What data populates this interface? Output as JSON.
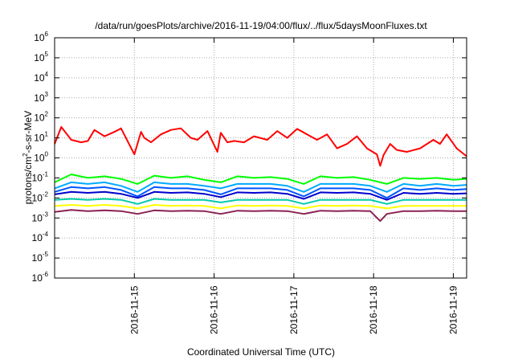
{
  "chart_data": {
    "type": "line",
    "title": "/data/run/goesPlots/archive/2016-11-19/04:00/flux/../flux/5daysMoonFluxes.txt",
    "xlabel": "Coordinated Universal Time (UTC)",
    "ylabel": {
      "base": "protons/cm",
      "exponent": "2",
      "rest": "-s-sr-MeV"
    },
    "y_scale": "log",
    "ylim": [
      1e-06,
      1000000.0
    ],
    "xlim": [
      "2016-11-14T00:00",
      "2016-11-19T04:00"
    ],
    "x_ticks": [
      "2016-11-15",
      "2016-11-16",
      "2016-11-17",
      "2016-11-18",
      "2016-11-19"
    ],
    "y_ticks": [
      {
        "base": "10",
        "exp": "-6"
      },
      {
        "base": "10",
        "exp": "-5"
      },
      {
        "base": "10",
        "exp": "-4"
      },
      {
        "base": "10",
        "exp": "-3"
      },
      {
        "base": "10",
        "exp": "-2"
      },
      {
        "base": "10",
        "exp": "-1"
      },
      {
        "base": "10",
        "exp": "0"
      },
      {
        "base": "10",
        "exp": "1"
      },
      {
        "base": "10",
        "exp": "2"
      },
      {
        "base": "10",
        "exp": "3"
      },
      {
        "base": "10",
        "exp": "4"
      },
      {
        "base": "10",
        "exp": "5"
      },
      {
        "base": "10",
        "exp": "6"
      }
    ],
    "grid": true,
    "legend": "none",
    "series": [
      {
        "color": "#ff0000",
        "x": [
          "2016-11-14T00:00",
          "2016-11-14T02:00",
          "2016-11-14T05:00",
          "2016-11-14T08:00",
          "2016-11-14T10:00",
          "2016-11-14T12:00",
          "2016-11-14T15:00",
          "2016-11-14T18:00",
          "2016-11-14T20:00",
          "2016-11-15T00:00",
          "2016-11-15T02:00",
          "2016-11-15T03:00",
          "2016-11-15T05:00",
          "2016-11-15T08:00",
          "2016-11-15T11:00",
          "2016-11-15T14:00",
          "2016-11-15T17:00",
          "2016-11-15T19:00",
          "2016-11-15T22:00",
          "2016-11-16T01:00",
          "2016-11-16T02:00",
          "2016-11-16T04:00",
          "2016-11-16T06:00",
          "2016-11-16T09:00",
          "2016-11-16T12:00",
          "2016-11-16T16:00",
          "2016-11-16T19:00",
          "2016-11-16T22:00",
          "2016-11-17T01:00",
          "2016-11-17T05:00",
          "2016-11-17T07:00",
          "2016-11-17T10:00",
          "2016-11-17T13:00",
          "2016-11-17T16:00",
          "2016-11-17T19:00",
          "2016-11-17T22:00",
          "2016-11-18T01:00",
          "2016-11-18T02:00",
          "2016-11-18T03:00",
          "2016-11-18T05:00",
          "2016-11-18T07:00",
          "2016-11-18T10:00",
          "2016-11-18T14:00",
          "2016-11-18T18:00",
          "2016-11-18T20:00",
          "2016-11-18T22:00",
          "2016-11-19T01:00",
          "2016-11-19T04:00"
        ],
        "values": [
          5,
          35,
          8,
          6,
          7,
          25,
          12,
          20,
          30,
          1.5,
          20,
          10,
          6,
          15,
          25,
          30,
          10,
          8,
          22,
          2,
          18,
          6,
          7,
          6,
          12,
          8,
          22,
          10,
          28,
          12,
          8,
          15,
          3,
          5,
          12,
          3,
          1.5,
          0.4,
          1.4,
          5,
          2.5,
          2,
          3,
          8,
          5,
          15,
          3,
          1.2
        ]
      },
      {
        "color": "#00ff00",
        "x": [
          "2016-11-14T00:00",
          "2016-11-14T05:00",
          "2016-11-14T10:00",
          "2016-11-14T15:00",
          "2016-11-14T20:00",
          "2016-11-15T01:00",
          "2016-11-15T06:00",
          "2016-11-15T11:00",
          "2016-11-15T16:00",
          "2016-11-15T21:00",
          "2016-11-16T02:00",
          "2016-11-16T07:00",
          "2016-11-16T12:00",
          "2016-11-16T17:00",
          "2016-11-16T22:00",
          "2016-11-17T03:00",
          "2016-11-17T08:00",
          "2016-11-17T13:00",
          "2016-11-17T18:00",
          "2016-11-17T23:00",
          "2016-11-18T04:00",
          "2016-11-18T09:00",
          "2016-11-18T14:00",
          "2016-11-18T19:00",
          "2016-11-19T00:00",
          "2016-11-19T04:00"
        ],
        "values": [
          0.06,
          0.15,
          0.1,
          0.12,
          0.09,
          0.05,
          0.13,
          0.1,
          0.12,
          0.08,
          0.06,
          0.12,
          0.1,
          0.11,
          0.09,
          0.05,
          0.12,
          0.1,
          0.11,
          0.08,
          0.05,
          0.1,
          0.09,
          0.1,
          0.08,
          0.09
        ]
      },
      {
        "color": "#00aaff",
        "x": [
          "2016-11-14T00:00",
          "2016-11-14T05:00",
          "2016-11-14T10:00",
          "2016-11-14T15:00",
          "2016-11-14T20:00",
          "2016-11-15T01:00",
          "2016-11-15T06:00",
          "2016-11-15T11:00",
          "2016-11-15T16:00",
          "2016-11-15T21:00",
          "2016-11-16T02:00",
          "2016-11-16T07:00",
          "2016-11-16T12:00",
          "2016-11-16T17:00",
          "2016-11-16T22:00",
          "2016-11-17T03:00",
          "2016-11-17T08:00",
          "2016-11-17T13:00",
          "2016-11-17T18:00",
          "2016-11-17T23:00",
          "2016-11-18T04:00",
          "2016-11-18T09:00",
          "2016-11-18T14:00",
          "2016-11-18T19:00",
          "2016-11-19T00:00",
          "2016-11-19T04:00"
        ],
        "values": [
          0.03,
          0.06,
          0.05,
          0.06,
          0.04,
          0.02,
          0.06,
          0.05,
          0.05,
          0.04,
          0.03,
          0.05,
          0.05,
          0.05,
          0.04,
          0.02,
          0.05,
          0.05,
          0.05,
          0.04,
          0.02,
          0.05,
          0.04,
          0.05,
          0.04,
          0.045
        ]
      },
      {
        "color": "#0055ff",
        "x": [
          "2016-11-14T00:00",
          "2016-11-14T05:00",
          "2016-11-14T10:00",
          "2016-11-14T15:00",
          "2016-11-14T20:00",
          "2016-11-15T01:00",
          "2016-11-15T06:00",
          "2016-11-15T11:00",
          "2016-11-15T16:00",
          "2016-11-15T21:00",
          "2016-11-16T02:00",
          "2016-11-16T07:00",
          "2016-11-16T12:00",
          "2016-11-16T17:00",
          "2016-11-16T22:00",
          "2016-11-17T03:00",
          "2016-11-17T08:00",
          "2016-11-17T13:00",
          "2016-11-17T18:00",
          "2016-11-17T23:00",
          "2016-11-18T04:00",
          "2016-11-18T09:00",
          "2016-11-18T14:00",
          "2016-11-18T19:00",
          "2016-11-19T00:00",
          "2016-11-19T04:00"
        ],
        "values": [
          0.02,
          0.035,
          0.03,
          0.035,
          0.025,
          0.012,
          0.035,
          0.03,
          0.03,
          0.025,
          0.015,
          0.03,
          0.03,
          0.03,
          0.025,
          0.012,
          0.03,
          0.03,
          0.03,
          0.025,
          0.01,
          0.03,
          0.025,
          0.03,
          0.025,
          0.028
        ]
      },
      {
        "color": "#0000cc",
        "x": [
          "2016-11-14T00:00",
          "2016-11-14T05:00",
          "2016-11-14T10:00",
          "2016-11-14T15:00",
          "2016-11-14T20:00",
          "2016-11-15T01:00",
          "2016-11-15T06:00",
          "2016-11-15T11:00",
          "2016-11-15T16:00",
          "2016-11-15T21:00",
          "2016-11-16T02:00",
          "2016-11-16T07:00",
          "2016-11-16T12:00",
          "2016-11-16T17:00",
          "2016-11-16T22:00",
          "2016-11-17T03:00",
          "2016-11-17T08:00",
          "2016-11-17T13:00",
          "2016-11-17T18:00",
          "2016-11-17T23:00",
          "2016-11-18T04:00",
          "2016-11-18T09:00",
          "2016-11-18T14:00",
          "2016-11-18T19:00",
          "2016-11-19T00:00",
          "2016-11-19T04:00"
        ],
        "values": [
          0.015,
          0.02,
          0.018,
          0.02,
          0.016,
          0.01,
          0.02,
          0.018,
          0.019,
          0.016,
          0.011,
          0.019,
          0.018,
          0.019,
          0.016,
          0.009,
          0.019,
          0.018,
          0.019,
          0.016,
          0.008,
          0.018,
          0.016,
          0.018,
          0.016,
          0.017
        ]
      },
      {
        "color": "#00ccaa",
        "x": [
          "2016-11-14T00:00",
          "2016-11-14T05:00",
          "2016-11-14T10:00",
          "2016-11-14T15:00",
          "2016-11-14T20:00",
          "2016-11-15T01:00",
          "2016-11-15T06:00",
          "2016-11-15T11:00",
          "2016-11-15T16:00",
          "2016-11-15T21:00",
          "2016-11-16T02:00",
          "2016-11-16T07:00",
          "2016-11-16T12:00",
          "2016-11-16T17:00",
          "2016-11-16T22:00",
          "2016-11-17T03:00",
          "2016-11-17T08:00",
          "2016-11-17T13:00",
          "2016-11-17T18:00",
          "2016-11-17T23:00",
          "2016-11-18T04:00",
          "2016-11-18T09:00",
          "2016-11-18T14:00",
          "2016-11-18T19:00",
          "2016-11-19T00:00",
          "2016-11-19T04:00"
        ],
        "values": [
          0.008,
          0.009,
          0.008,
          0.009,
          0.008,
          0.005,
          0.009,
          0.008,
          0.008,
          0.008,
          0.006,
          0.008,
          0.008,
          0.008,
          0.008,
          0.005,
          0.008,
          0.008,
          0.008,
          0.008,
          0.005,
          0.008,
          0.008,
          0.008,
          0.008,
          0.008
        ]
      },
      {
        "color": "#ffff00",
        "x": [
          "2016-11-14T00:00",
          "2016-11-14T05:00",
          "2016-11-14T10:00",
          "2016-11-14T15:00",
          "2016-11-14T20:00",
          "2016-11-15T01:00",
          "2016-11-15T06:00",
          "2016-11-15T11:00",
          "2016-11-15T16:00",
          "2016-11-15T21:00",
          "2016-11-16T02:00",
          "2016-11-16T07:00",
          "2016-11-16T12:00",
          "2016-11-16T17:00",
          "2016-11-16T22:00",
          "2016-11-17T03:00",
          "2016-11-17T08:00",
          "2016-11-17T13:00",
          "2016-11-17T18:00",
          "2016-11-17T23:00",
          "2016-11-18T04:00",
          "2016-11-18T09:00",
          "2016-11-18T14:00",
          "2016-11-18T19:00",
          "2016-11-19T00:00",
          "2016-11-19T04:00"
        ],
        "values": [
          0.004,
          0.0045,
          0.004,
          0.0045,
          0.004,
          0.003,
          0.0045,
          0.004,
          0.0042,
          0.004,
          0.003,
          0.0042,
          0.004,
          0.0042,
          0.004,
          0.003,
          0.0042,
          0.004,
          0.0042,
          0.004,
          0.003,
          0.004,
          0.004,
          0.004,
          0.004,
          0.004
        ]
      },
      {
        "color": "#8b2252",
        "x": [
          "2016-11-14T00:00",
          "2016-11-14T05:00",
          "2016-11-14T10:00",
          "2016-11-14T15:00",
          "2016-11-14T20:00",
          "2016-11-15T01:00",
          "2016-11-15T06:00",
          "2016-11-15T11:00",
          "2016-11-15T16:00",
          "2016-11-15T21:00",
          "2016-11-16T02:00",
          "2016-11-16T07:00",
          "2016-11-16T12:00",
          "2016-11-16T17:00",
          "2016-11-16T22:00",
          "2016-11-17T03:00",
          "2016-11-17T08:00",
          "2016-11-17T13:00",
          "2016-11-17T18:00",
          "2016-11-17T23:00",
          "2016-11-18T02:00",
          "2016-11-18T04:00",
          "2016-11-18T09:00",
          "2016-11-18T14:00",
          "2016-11-18T19:00",
          "2016-11-19T00:00",
          "2016-11-19T04:00"
        ],
        "values": [
          0.002,
          0.0025,
          0.0022,
          0.0024,
          0.0022,
          0.0016,
          0.0024,
          0.0022,
          0.0023,
          0.0022,
          0.0016,
          0.0023,
          0.0022,
          0.0023,
          0.0022,
          0.0016,
          0.0023,
          0.0022,
          0.0023,
          0.0022,
          0.0007,
          0.0016,
          0.0022,
          0.0022,
          0.0023,
          0.0022,
          0.0022
        ]
      }
    ]
  }
}
